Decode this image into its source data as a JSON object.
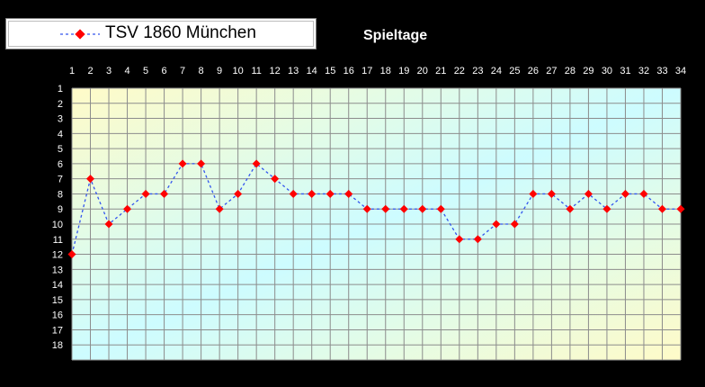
{
  "chart_data": {
    "type": "line",
    "title": "Spieltage",
    "x": [
      1,
      2,
      3,
      4,
      5,
      6,
      7,
      8,
      9,
      10,
      11,
      12,
      13,
      14,
      15,
      16,
      17,
      18,
      19,
      20,
      21,
      22,
      23,
      24,
      25,
      26,
      27,
      28,
      29,
      30,
      31,
      32,
      33,
      34
    ],
    "y_ticks": [
      1,
      2,
      3,
      4,
      5,
      6,
      7,
      8,
      9,
      10,
      11,
      12,
      13,
      14,
      15,
      16,
      17,
      18
    ],
    "ylim": [
      1,
      18
    ],
    "y_reversed": true,
    "grid": true,
    "legend": "top-left",
    "series": [
      {
        "name": "TSV 1860 München",
        "values": [
          12,
          7,
          10,
          9,
          8,
          8,
          6,
          6,
          9,
          8,
          6,
          7,
          8,
          8,
          8,
          8,
          9,
          9,
          9,
          9,
          9,
          11,
          11,
          10,
          10,
          8,
          8,
          9,
          8,
          9,
          8,
          8,
          9,
          9
        ],
        "line_color": "#3355ee",
        "marker_color": "#ff0000"
      }
    ]
  },
  "colors": {
    "background": "#000000",
    "plot_gradient_light_cyan": "#cdfcff",
    "plot_gradient_light_yellow": "#fffbc8",
    "grid": "#8c8c8c"
  }
}
